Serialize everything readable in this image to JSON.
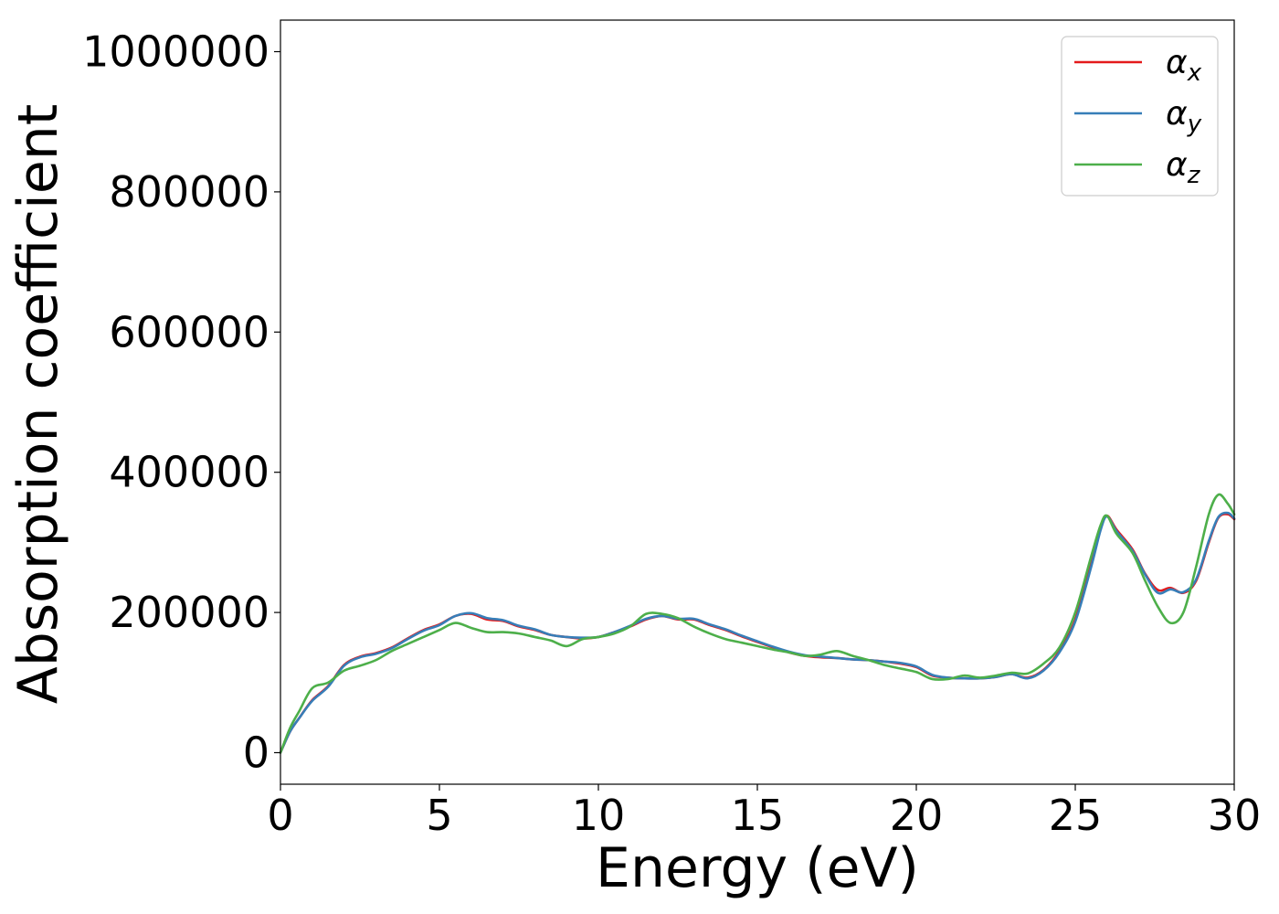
{
  "chart_data": {
    "type": "line",
    "title": "",
    "xlabel": "Energy (eV)",
    "ylabel": "Absorption coefficient",
    "xlim": [
      0,
      30
    ],
    "ylim": [
      -45000,
      1045000
    ],
    "xticks": [
      0,
      5,
      10,
      15,
      20,
      25,
      30
    ],
    "xtick_labels": [
      "0",
      "5",
      "10",
      "15",
      "20",
      "25",
      "30"
    ],
    "yticks": [
      0,
      200000,
      400000,
      600000,
      800000,
      1000000
    ],
    "ytick_labels": [
      "0",
      "200000",
      "400000",
      "600000",
      "800000",
      "1000000"
    ],
    "grid": false,
    "legend_position": "top-right",
    "series": [
      {
        "name": "α",
        "subscript": "x",
        "color": "#e41a1c",
        "x": [
          0,
          0.3,
          0.6,
          1.0,
          1.5,
          2.0,
          2.5,
          3.0,
          3.5,
          4.0,
          4.5,
          5.0,
          5.5,
          6.0,
          6.5,
          7.0,
          7.5,
          8.0,
          8.5,
          9.0,
          9.5,
          10.0,
          10.5,
          11.0,
          11.5,
          12.0,
          12.5,
          13.0,
          13.5,
          14.0,
          14.5,
          15.0,
          15.5,
          16.0,
          16.5,
          17.0,
          17.5,
          18.0,
          18.5,
          19.0,
          19.5,
          20.0,
          20.5,
          21.0,
          21.5,
          22.0,
          22.5,
          23.0,
          23.5,
          24.0,
          24.5,
          25.0,
          25.5,
          25.8,
          26.0,
          26.3,
          26.8,
          27.2,
          27.6,
          28.0,
          28.4,
          28.8,
          29.2,
          29.5,
          29.8,
          30.0
        ],
        "y": [
          0,
          30000,
          50000,
          75000,
          95000,
          125000,
          137000,
          142000,
          150000,
          163000,
          175000,
          183000,
          195000,
          198000,
          190000,
          188000,
          180000,
          175000,
          168000,
          165000,
          163000,
          165000,
          172000,
          180000,
          190000,
          195000,
          190000,
          190000,
          182000,
          175000,
          166000,
          158000,
          150000,
          143000,
          138000,
          136000,
          135000,
          133000,
          132000,
          130000,
          127000,
          122000,
          110000,
          107000,
          106000,
          106000,
          108000,
          112000,
          107000,
          118000,
          145000,
          190000,
          270000,
          320000,
          338000,
          318000,
          290000,
          255000,
          232000,
          235000,
          228000,
          245000,
          300000,
          335000,
          340000,
          333000
        ]
      },
      {
        "name": "α",
        "subscript": "y",
        "color": "#377eb8",
        "x": [
          0,
          0.3,
          0.6,
          1.0,
          1.5,
          2.0,
          2.5,
          3.0,
          3.5,
          4.0,
          4.5,
          5.0,
          5.5,
          6.0,
          6.5,
          7.0,
          7.5,
          8.0,
          8.5,
          9.0,
          9.5,
          10.0,
          10.5,
          11.0,
          11.5,
          12.0,
          12.5,
          13.0,
          13.5,
          14.0,
          14.5,
          15.0,
          15.5,
          16.0,
          16.5,
          17.0,
          17.5,
          18.0,
          18.5,
          19.0,
          19.5,
          20.0,
          20.5,
          21.0,
          21.5,
          22.0,
          22.5,
          23.0,
          23.5,
          24.0,
          24.5,
          25.0,
          25.5,
          25.8,
          26.0,
          26.3,
          26.8,
          27.2,
          27.6,
          28.0,
          28.4,
          28.8,
          29.2,
          29.5,
          29.8,
          30.0
        ],
        "y": [
          0,
          30000,
          50000,
          74000,
          94000,
          124000,
          136000,
          141000,
          149000,
          162000,
          174000,
          182000,
          195000,
          199000,
          192000,
          189000,
          181000,
          176000,
          168000,
          165000,
          164000,
          165000,
          172000,
          181000,
          191000,
          195000,
          191000,
          191000,
          183000,
          176000,
          167000,
          159000,
          151000,
          144000,
          139000,
          137000,
          135000,
          133000,
          132000,
          130000,
          128000,
          123000,
          111000,
          107000,
          106000,
          106000,
          108000,
          112000,
          106000,
          117000,
          143000,
          187000,
          265000,
          318000,
          337000,
          316000,
          288000,
          254000,
          228000,
          233000,
          229000,
          247000,
          302000,
          336000,
          342000,
          334000
        ]
      },
      {
        "name": "α",
        "subscript": "z",
        "color": "#4daf4a",
        "x": [
          0,
          0.3,
          0.6,
          1.0,
          1.5,
          2.0,
          2.5,
          3.0,
          3.5,
          4.0,
          4.5,
          5.0,
          5.5,
          6.0,
          6.5,
          7.0,
          7.5,
          8.0,
          8.5,
          9.0,
          9.5,
          10.0,
          10.5,
          11.0,
          11.5,
          12.0,
          12.5,
          13.0,
          13.5,
          14.0,
          14.5,
          15.0,
          15.5,
          16.0,
          16.5,
          17.0,
          17.5,
          18.0,
          18.5,
          19.0,
          19.5,
          20.0,
          20.5,
          21.0,
          21.5,
          22.0,
          22.5,
          23.0,
          23.5,
          24.0,
          24.5,
          25.0,
          25.5,
          25.8,
          26.0,
          26.3,
          26.8,
          27.2,
          27.6,
          28.0,
          28.4,
          28.8,
          29.2,
          29.5,
          29.8,
          30.0
        ],
        "y": [
          0,
          35000,
          60000,
          92000,
          100000,
          117000,
          124000,
          132000,
          145000,
          155000,
          165000,
          175000,
          185000,
          178000,
          172000,
          172000,
          170000,
          165000,
          160000,
          152000,
          162000,
          165000,
          170000,
          180000,
          198000,
          198000,
          192000,
          180000,
          170000,
          162000,
          157000,
          152000,
          147000,
          143000,
          138000,
          140000,
          145000,
          138000,
          132000,
          125000,
          120000,
          115000,
          105000,
          105000,
          110000,
          107000,
          110000,
          114000,
          113000,
          127000,
          150000,
          200000,
          280000,
          325000,
          338000,
          312000,
          285000,
          245000,
          208000,
          185000,
          200000,
          265000,
          340000,
          368000,
          355000,
          340000
        ]
      }
    ]
  }
}
